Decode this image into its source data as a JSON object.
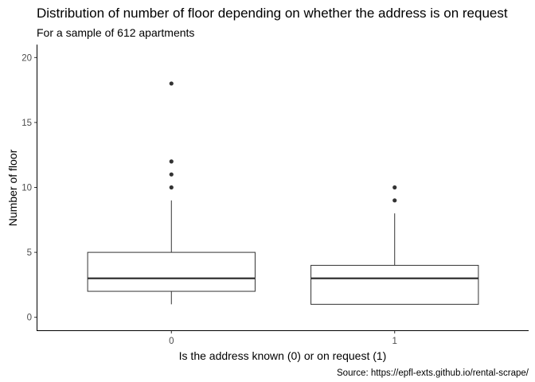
{
  "chart_data": {
    "type": "boxplot",
    "title": "Distribution of number of floor depending on whether the address is on request",
    "subtitle": "For a sample of 612 apartments",
    "xlabel": "Is the address known (0) or on request (1)",
    "ylabel": "Number of floor",
    "caption": "Source: https://epfl-exts.github.io/rental-scrape/",
    "categories": [
      "0",
      "1"
    ],
    "ylim": [
      -1,
      21
    ],
    "yticks": [
      "0",
      "5",
      "10",
      "15",
      "20"
    ],
    "grid": false,
    "boxes": [
      {
        "category": "0",
        "lower_whisker": 1,
        "q1": 2,
        "median": 3,
        "q3": 5,
        "upper_whisker": 9,
        "outliers": [
          10,
          11,
          12,
          18
        ]
      },
      {
        "category": "1",
        "lower_whisker": 1,
        "q1": 1,
        "median": 3,
        "q3": 4,
        "upper_whisker": 8,
        "outliers": [
          9,
          10
        ]
      }
    ]
  }
}
